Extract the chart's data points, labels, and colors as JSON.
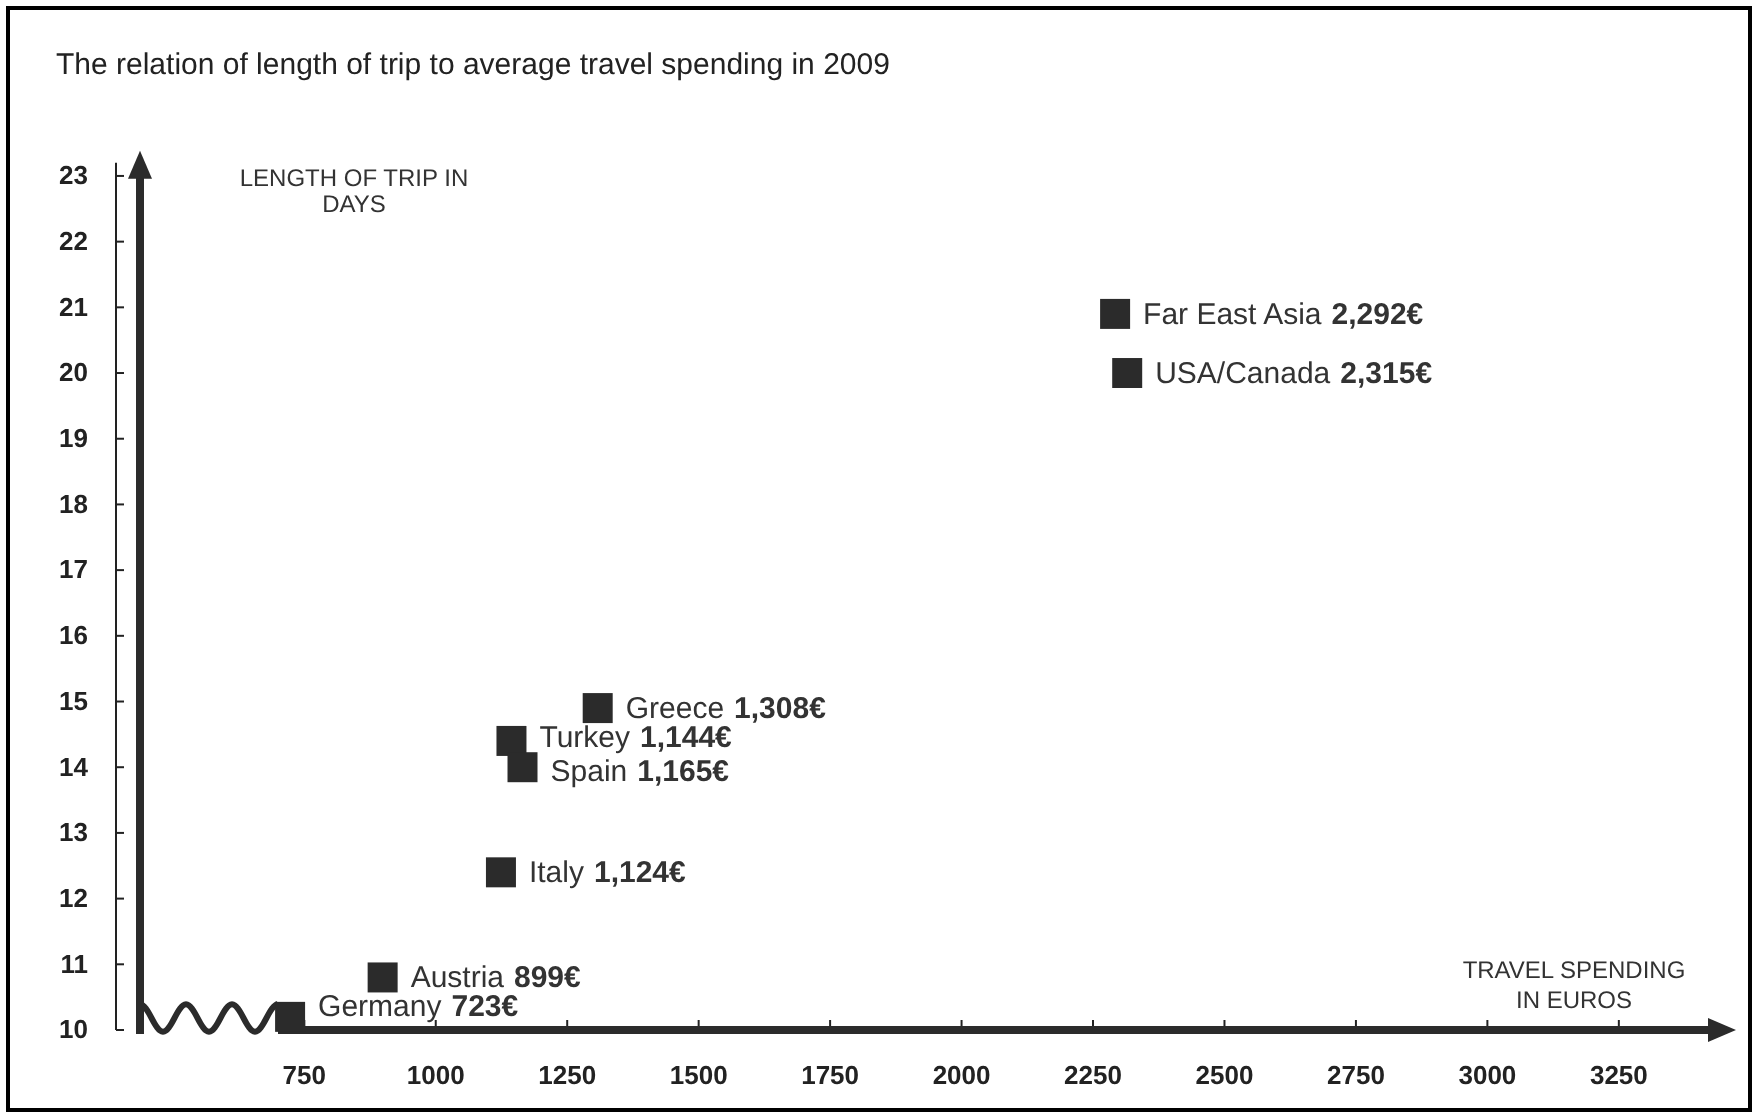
{
  "chart_data": {
    "type": "scatter",
    "title": "The relation of length of trip to average travel spending in 2009",
    "xlabel": "TRAVEL SPENDING IN EUROS",
    "ylabel": "LENGTH OF TRIP IN DAYS",
    "marker": "square",
    "xlim": [
      700,
      3450
    ],
    "xticks": [
      750,
      1000,
      1250,
      1500,
      1750,
      2000,
      2250,
      2500,
      2750,
      3000,
      3250
    ],
    "ylim": [
      10,
      23.2
    ],
    "yticks": [
      10,
      11,
      12,
      13,
      14,
      15,
      16,
      17,
      18,
      19,
      20,
      21,
      22,
      23
    ],
    "series": [
      {
        "name": "Germany",
        "color": "#2b2b2b",
        "x": [
          723
        ],
        "values": [
          10.2
        ]
      },
      {
        "name": "Austria",
        "color": "#2b2b2b",
        "x": [
          899
        ],
        "values": [
          10.8
        ]
      },
      {
        "name": "Italy",
        "color": "#2b2b2b",
        "x": [
          1124
        ],
        "values": [
          12.4
        ]
      },
      {
        "name": "Turkey",
        "color": "#2b2b2b",
        "x": [
          1144
        ],
        "values": [
          14.4
        ]
      },
      {
        "name": "Spain",
        "color": "#2b2b2b",
        "x": [
          1165
        ],
        "values": [
          14.0
        ]
      },
      {
        "name": "Greece",
        "color": "#2b2b2b",
        "x": [
          1308
        ],
        "values": [
          14.9
        ]
      },
      {
        "name": "Far East Asia",
        "color": "#2b2b2b",
        "x": [
          2292
        ],
        "values": [
          20.9
        ]
      },
      {
        "name": "USA/Canada",
        "color": "#2b2b2b",
        "x": [
          2315
        ],
        "values": [
          20.0
        ]
      }
    ],
    "annotations": [
      "723€",
      "899€",
      "1,124€",
      "1,144€",
      "1,165€",
      "1,308€",
      "2,292€",
      "2,315€"
    ]
  }
}
